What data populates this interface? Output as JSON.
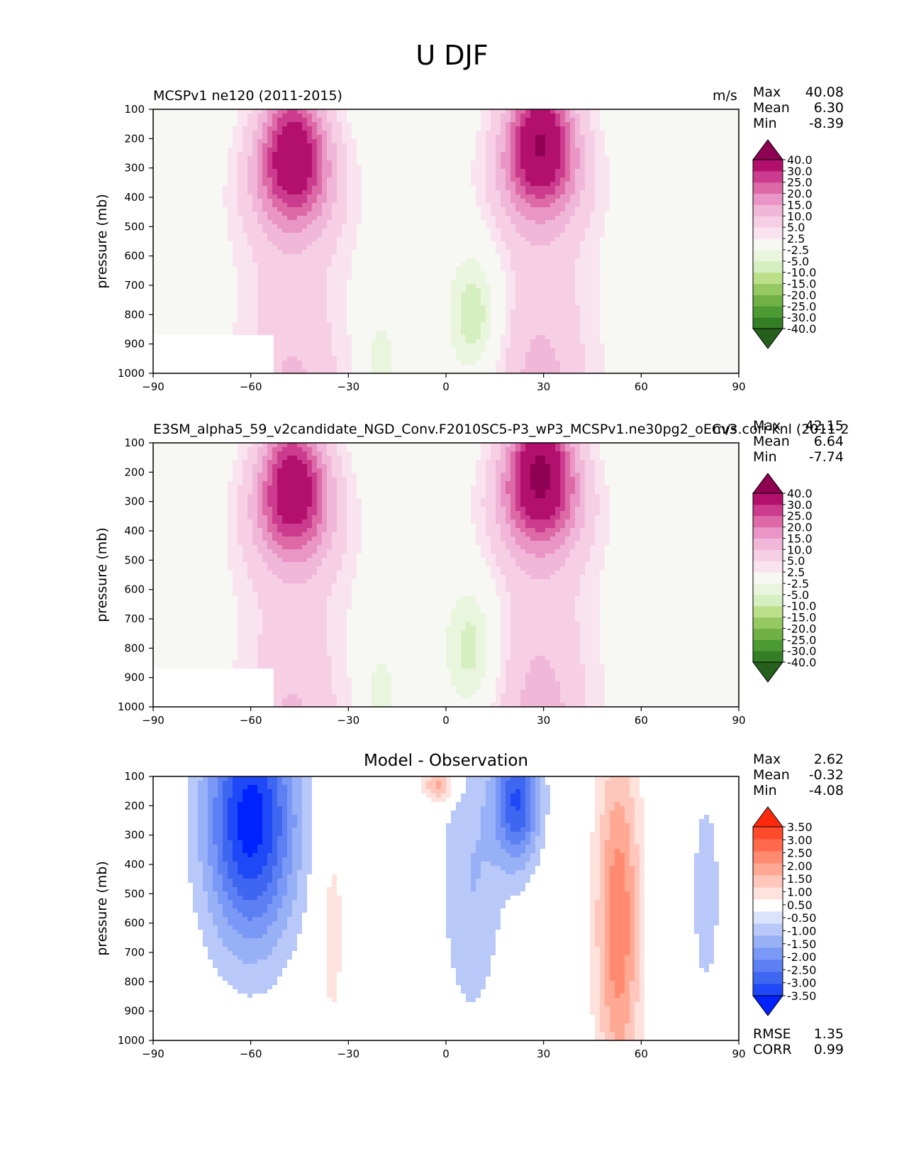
{
  "figure_title": "U DJF",
  "colors": {
    "magenta_scale": [
      "#25601c",
      "#347e26",
      "#4b9a32",
      "#70b146",
      "#97c963",
      "#bce08a",
      "#d6efc1",
      "#eaf5de",
      "#f7f7f4",
      "#f9e3ef",
      "#f6cfe5",
      "#f1b7d9",
      "#e996c6",
      "#dd6aa7",
      "#cc3c8e",
      "#b3106d",
      "#8e0152"
    ],
    "diverging_scale": [
      "#0022ff",
      "#1f48f7",
      "#3f66f0",
      "#5c80f4",
      "#7a98f5",
      "#98b0f6",
      "#b8c8f8",
      "#dbe2fc",
      "#ffffff",
      "#ffe2dc",
      "#ffc7bb",
      "#ffa894",
      "#ff8a70",
      "#ff6a4d",
      "#ff4a2c",
      "#ff2a0e"
    ]
  },
  "panels": [
    {
      "left_title": "MCSPv1 ne120 (2011-2015)",
      "units": "m/s",
      "stats": [
        {
          "label": "Max",
          "value": "40.08"
        },
        {
          "label": "Mean",
          "value": "6.30"
        },
        {
          "label": "Min",
          "value": "-8.39"
        }
      ],
      "colorbar_ticks": [
        "40.0",
        "30.0",
        "25.0",
        "20.0",
        "15.0",
        "10.0",
        "5.0",
        "2.5",
        "-2.5",
        "-5.0",
        "-10.0",
        "-15.0",
        "-20.0",
        "-25.0",
        "-30.0",
        "-40.0"
      ]
    },
    {
      "left_title": "E3SM_alpha5_59_v2candidate_NGD_Conv.F2010SC5-P3_wP3_MCSPv1.ne30pg2_oECv3.cori-knl (2011-2",
      "units": "m/s",
      "stats": [
        {
          "label": "Max",
          "value": "42.15"
        },
        {
          "label": "Mean",
          "value": "6.64"
        },
        {
          "label": "Min",
          "value": "-7.74"
        }
      ],
      "colorbar_ticks": [
        "40.0",
        "30.0",
        "25.0",
        "20.0",
        "15.0",
        "10.0",
        "5.0",
        "2.5",
        "-2.5",
        "-5.0",
        "-10.0",
        "-15.0",
        "-20.0",
        "-25.0",
        "-30.0",
        "-40.0"
      ]
    },
    {
      "center_title": "Model - Observation",
      "stats": [
        {
          "label": "Max",
          "value": "2.62"
        },
        {
          "label": "Mean",
          "value": "-0.32"
        },
        {
          "label": "Min",
          "value": "-4.08"
        }
      ],
      "colorbar_ticks": [
        "3.50",
        "3.00",
        "2.50",
        "2.00",
        "1.50",
        "1.00",
        "0.50",
        "-0.50",
        "-1.00",
        "-1.50",
        "-2.00",
        "-2.50",
        "-3.00",
        "-3.50"
      ],
      "metrics": [
        {
          "label": "RMSE",
          "value": "1.35"
        },
        {
          "label": "CORR",
          "value": "0.99"
        }
      ]
    }
  ],
  "chart_data": [
    {
      "type": "heatmap",
      "title": "MCSPv1 ne120 (2011-2015)",
      "xlabel": "",
      "ylabel": "pressure (mb)",
      "x_ticks": [
        "−90",
        "−60",
        "−30",
        "0",
        "30",
        "60",
        "90"
      ],
      "y_ticks": [
        "100",
        "200",
        "300",
        "400",
        "500",
        "600",
        "700",
        "800",
        "900",
        "1000"
      ],
      "xlim": [
        -90,
        90
      ],
      "ylim": [
        1000,
        100
      ],
      "jets": [
        {
          "lat": -47,
          "p": 260,
          "peak": 38
        },
        {
          "lat": 29,
          "p": 220,
          "peak": 40
        }
      ],
      "easterlies": [
        {
          "lat": 9,
          "p": 800,
          "min": -8.4
        }
      ]
    },
    {
      "type": "heatmap",
      "title": "E3SM_alpha5_59_v2candidate_NGD_Conv.F2010SC5-P3_wP3_MCSPv1.ne30pg2_oECv3.cori-knl (2011-2",
      "xlabel": "",
      "ylabel": "pressure (mb)",
      "x_ticks": [
        "−90",
        "−60",
        "−30",
        "0",
        "30",
        "60",
        "90"
      ],
      "y_ticks": [
        "100",
        "200",
        "300",
        "400",
        "500",
        "600",
        "700",
        "800",
        "900",
        "1000"
      ],
      "xlim": [
        -90,
        90
      ],
      "ylim": [
        1000,
        100
      ],
      "jets": [
        {
          "lat": -47,
          "p": 255,
          "peak": 37
        },
        {
          "lat": 29,
          "p": 210,
          "peak": 42
        }
      ],
      "easterlies": [
        {
          "lat": 8,
          "p": 800,
          "min": -7.7
        }
      ]
    },
    {
      "type": "heatmap",
      "title": "Model - Observation",
      "xlabel": "",
      "ylabel": "pressure (mb)",
      "x_ticks": [
        "−90",
        "−60",
        "−30",
        "0",
        "30",
        "60",
        "90"
      ],
      "y_ticks": [
        "100",
        "200",
        "300",
        "400",
        "500",
        "600",
        "700",
        "800",
        "900",
        "1000"
      ],
      "xlim": [
        -90,
        90
      ],
      "ylim": [
        1000,
        100
      ],
      "anomalies": [
        {
          "lat": -60,
          "p": 250,
          "value": -3.8
        },
        {
          "lat": 22,
          "p": 180,
          "value": -3.0
        },
        {
          "lat": 53,
          "p": 600,
          "value": 2.4
        },
        {
          "lat": -2,
          "p": 130,
          "value": 1.8
        },
        {
          "lat": 80,
          "p": 500,
          "value": -0.8
        }
      ]
    }
  ]
}
